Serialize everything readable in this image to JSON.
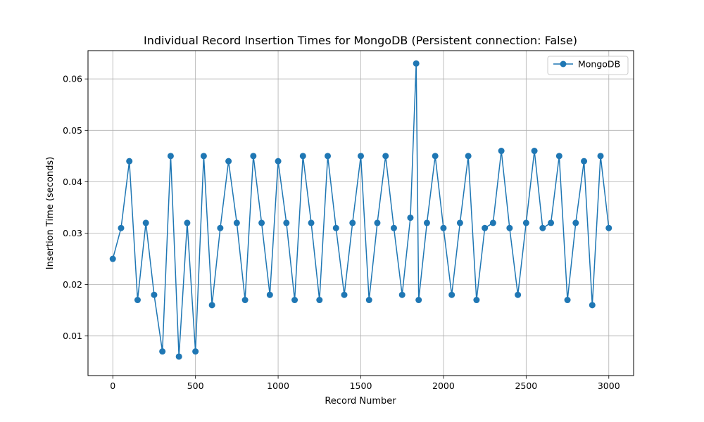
{
  "chart_data": {
    "type": "line",
    "title": "Individual Record Insertion Times for MongoDB (Persistent connection: False)",
    "xlabel": "Record Number",
    "ylabel": "Insertion Time (seconds)",
    "xlim": [
      -150,
      3150
    ],
    "ylim": [
      0.0023,
      0.0655
    ],
    "x_ticks": [
      0,
      500,
      1000,
      1500,
      2000,
      2500,
      3000
    ],
    "x_tick_labels": [
      "0",
      "500",
      "1000",
      "1500",
      "2000",
      "2500",
      "3000"
    ],
    "y_ticks": [
      0.01,
      0.02,
      0.03,
      0.04,
      0.05,
      0.06
    ],
    "y_tick_labels": [
      "0.01",
      "0.02",
      "0.03",
      "0.04",
      "0.05",
      "0.06"
    ],
    "grid": true,
    "legend_position": "top-right",
    "series": [
      {
        "name": "MongoDB",
        "color": "#1f77b4",
        "marker": "circle",
        "x": [
          0,
          50,
          100,
          150,
          200,
          250,
          300,
          350,
          400,
          450,
          500,
          550,
          600,
          650,
          700,
          750,
          800,
          850,
          900,
          950,
          1000,
          1050,
          1100,
          1150,
          1200,
          1250,
          1300,
          1350,
          1400,
          1450,
          1500,
          1550,
          1600,
          1650,
          1700,
          1750,
          1800,
          1835,
          1850,
          1900,
          1950,
          2000,
          2050,
          2100,
          2150,
          2200,
          2250,
          2300,
          2350,
          2400,
          2450,
          2500,
          2550,
          2600,
          2650,
          2700,
          2750,
          2800,
          2850,
          2900,
          2950,
          3000
        ],
        "y": [
          0.025,
          0.031,
          0.044,
          0.017,
          0.032,
          0.018,
          0.007,
          0.045,
          0.006,
          0.032,
          0.007,
          0.045,
          0.016,
          0.031,
          0.044,
          0.032,
          0.017,
          0.045,
          0.032,
          0.018,
          0.044,
          0.032,
          0.017,
          0.045,
          0.032,
          0.017,
          0.045,
          0.031,
          0.018,
          0.032,
          0.045,
          0.017,
          0.032,
          0.045,
          0.031,
          0.018,
          0.033,
          0.063,
          0.017,
          0.032,
          0.045,
          0.031,
          0.018,
          0.032,
          0.045,
          0.017,
          0.031,
          0.032,
          0.046,
          0.031,
          0.018,
          0.032,
          0.046,
          0.031,
          0.032,
          0.045,
          0.017,
          0.032,
          0.044,
          0.016,
          0.045,
          0.031
        ]
      }
    ]
  }
}
